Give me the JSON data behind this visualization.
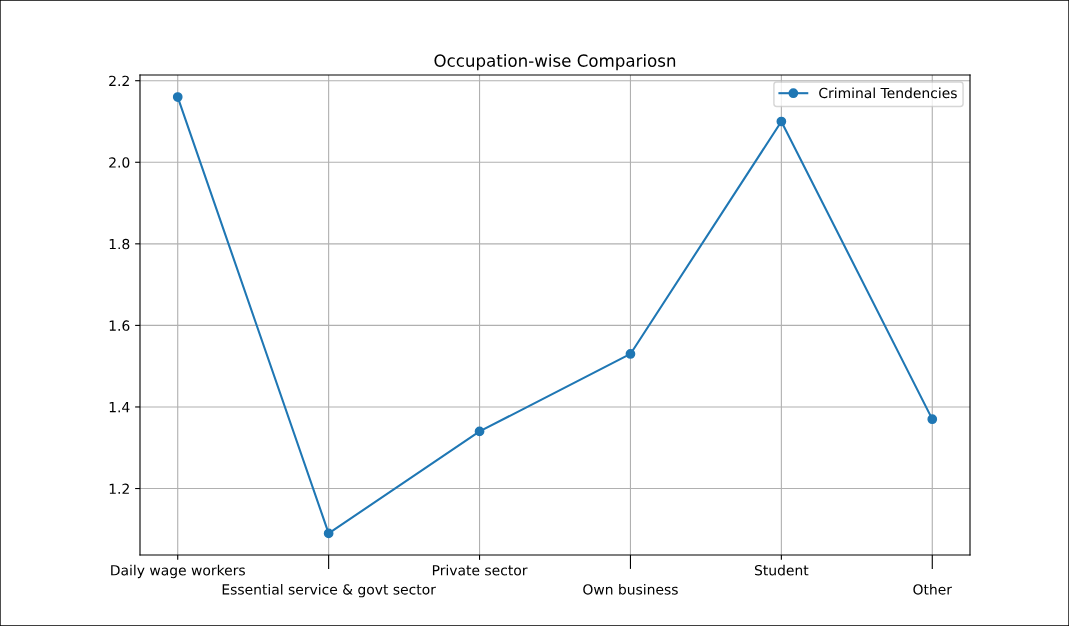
{
  "chart_data": {
    "type": "line",
    "title": "Occupation-wise Compariosn",
    "categories": [
      "Daily wage workers",
      "Essential service & govt sector",
      "Private sector",
      "Own business",
      "Student",
      "Other"
    ],
    "series": [
      {
        "name": "Criminal Tendencies",
        "color": "#1f77b4",
        "values": [
          2.16,
          1.09,
          1.34,
          1.53,
          2.1,
          1.37
        ]
      }
    ],
    "ylim": [
      1.037,
      2.214
    ],
    "yticks": [
      {
        "value": 1.2,
        "label": "1.2"
      },
      {
        "value": 1.4,
        "label": "1.4"
      },
      {
        "value": 1.6,
        "label": "1.6"
      },
      {
        "value": 1.8,
        "label": "1.8"
      },
      {
        "value": 2.0,
        "label": "2.0"
      },
      {
        "value": 2.2,
        "label": "2.2"
      }
    ],
    "grid": true,
    "legend": "top right",
    "marker": "circle",
    "line_style": "solid"
  }
}
